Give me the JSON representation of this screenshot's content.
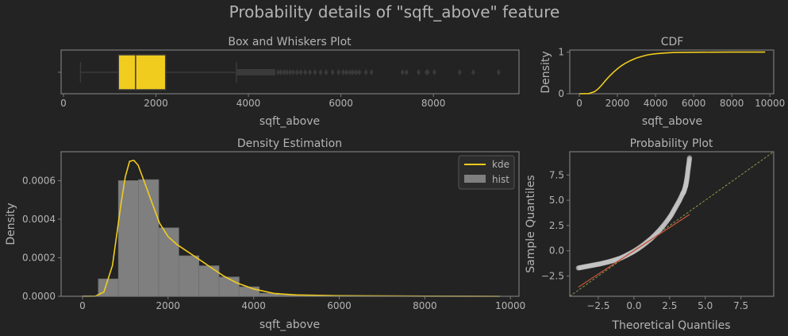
{
  "figure": {
    "suptitle": "Probability details of \"sqft_above\" feature",
    "colors": {
      "background": "#232323",
      "text": "#b4b4b4",
      "frame": "#7a7a7a",
      "accent": "#f0cc1e",
      "hist": "#7f7f7f",
      "fit_line": "#c0533a",
      "ref_line": "#8a9a4a",
      "points": "#c4c4c4"
    }
  },
  "chart_data": [
    {
      "id": "box",
      "type": "box",
      "title": "Box and Whiskers Plot",
      "xlabel": "sqft_above",
      "ylabel": "",
      "xlim": [
        -50,
        9850
      ],
      "xticks": [
        0,
        2000,
        4000,
        6000,
        8000
      ],
      "xticklabels": [
        "0",
        "2000",
        "4000",
        "6000",
        "8000"
      ],
      "stats": {
        "whislo": 370,
        "q1": 1190,
        "median": 1560,
        "q3": 2210,
        "whishi": 3740
      },
      "outlier_band": [
        3740,
        4580
      ],
      "outliers": [
        4640,
        4700,
        4770,
        4830,
        4900,
        4970,
        5050,
        5130,
        5230,
        5330,
        5440,
        5560,
        5680,
        5820,
        5950,
        6050,
        6120,
        6200,
        6260,
        6330,
        6400,
        6540,
        6660,
        7330,
        7420,
        7680,
        7850,
        7880,
        8020,
        8570,
        8860,
        9410
      ]
    },
    {
      "id": "cdf",
      "type": "line",
      "title": "CDF",
      "xlabel": "sqft_above",
      "ylabel": "Density",
      "xlim": [
        -500,
        10200
      ],
      "ylim": [
        0,
        1.05
      ],
      "xticks": [
        0,
        2000,
        4000,
        6000,
        8000,
        10000
      ],
      "xticklabels": [
        "0",
        "2000",
        "4000",
        "6000",
        "8000",
        "10000"
      ],
      "yticks": [
        0,
        1
      ],
      "yticklabels": [
        "0",
        "1"
      ],
      "series": [
        {
          "x": [
            0,
            500,
            800,
            1000,
            1200,
            1400,
            1600,
            1800,
            2000,
            2200,
            2400,
            2700,
            3000,
            3300,
            3600,
            4000,
            4500,
            5000,
            6000,
            7000,
            8000,
            9000,
            9750
          ],
          "y": [
            0,
            0.004,
            0.05,
            0.12,
            0.22,
            0.33,
            0.43,
            0.52,
            0.6,
            0.67,
            0.73,
            0.8,
            0.86,
            0.9,
            0.935,
            0.96,
            0.98,
            0.99,
            0.997,
            0.999,
            1.0,
            1.0,
            1.0
          ]
        }
      ]
    },
    {
      "id": "density",
      "type": "bar",
      "title": "Density Estimation",
      "xlabel": "sqft_above",
      "ylabel": "Density",
      "xlim": [
        -500,
        10200
      ],
      "ylim": [
        0,
        0.00075
      ],
      "xticks": [
        0,
        2000,
        4000,
        6000,
        8000,
        10000
      ],
      "xticklabels": [
        "0",
        "2000",
        "4000",
        "6000",
        "8000",
        "10000"
      ],
      "yticks": [
        0,
        0.0002,
        0.0004,
        0.0006
      ],
      "yticklabels": [
        "0.0000",
        "0.0002",
        "0.0004",
        "0.0006"
      ],
      "legend": {
        "position": "top-right",
        "entries": [
          "kde",
          "hist"
        ]
      },
      "hist": {
        "edges": [
          0,
          370,
          840,
          1310,
          1780,
          2250,
          2720,
          3190,
          3660,
          4130,
          4600,
          5070,
          5540,
          6010,
          6480,
          6950,
          7420,
          7890,
          8360,
          8830,
          9300,
          9770
        ],
        "values": [
          3e-06,
          9e-05,
          0.0006,
          0.000605,
          0.000355,
          0.00021,
          0.000158,
          0.0001,
          4.9e-05,
          1.6e-05,
          8e-06,
          5e-06,
          4e-06,
          3e-06,
          2e-06,
          1e-06,
          1e-06,
          1e-06,
          1e-06,
          1e-06,
          5e-07
        ]
      },
      "kde": {
        "x": [
          0,
          300,
          500,
          700,
          900,
          1000,
          1100,
          1200,
          1300,
          1400,
          1500,
          1600,
          1700,
          1800,
          2000,
          2200,
          2400,
          2600,
          2800,
          3000,
          3300,
          3600,
          4000,
          4500,
          5000,
          6000,
          7000,
          8000,
          9000,
          9750
        ],
        "y": [
          0,
          1e-06,
          2.2e-05,
          0.00016,
          0.00048,
          0.00062,
          0.0007,
          0.000705,
          0.00068,
          0.00062,
          0.00056,
          0.0005,
          0.00044,
          0.00038,
          0.00031,
          0.00027,
          0.00024,
          0.00021,
          0.00018,
          0.00015,
          0.000105,
          7e-05,
          3.8e-05,
          1.4e-05,
          7e-06,
          3e-06,
          1.5e-06,
          1e-06,
          5e-07,
          2e-07
        ]
      }
    },
    {
      "id": "probplot",
      "type": "scatter",
      "title": "Probability Plot",
      "xlabel": "Theoretical Quantiles",
      "ylabel": "Sample Quantiles",
      "xlim": [
        -4.5,
        9.8
      ],
      "ylim": [
        -4.5,
        9.8
      ],
      "xticks": [
        -2.5,
        0,
        2.5,
        5,
        7.5
      ],
      "xticklabels": [
        "−2.5",
        "0.0",
        "2.5",
        "5.0",
        "7.5"
      ],
      "yticks": [
        -2.5,
        0,
        2.5,
        5,
        7.5
      ],
      "yticklabels": [
        "−2.5",
        "0.0",
        "2.5",
        "5.0",
        "7.5"
      ],
      "points": {
        "x": [
          -3.9,
          -3.6,
          -3.3,
          -3.0,
          -2.7,
          -2.4,
          -2.1,
          -1.8,
          -1.5,
          -1.2,
          -0.9,
          -0.6,
          -0.3,
          0.0,
          0.3,
          0.6,
          0.9,
          1.2,
          1.5,
          1.8,
          2.1,
          2.4,
          2.6,
          2.8,
          3.0,
          3.2,
          3.4,
          3.5,
          3.6,
          3.65,
          3.7,
          3.75,
          3.8,
          3.85,
          3.9
        ],
        "y": [
          -1.7,
          -1.62,
          -1.54,
          -1.46,
          -1.38,
          -1.3,
          -1.2,
          -1.1,
          -0.98,
          -0.85,
          -0.7,
          -0.5,
          -0.28,
          -0.05,
          0.22,
          0.52,
          0.85,
          1.2,
          1.6,
          2.05,
          2.55,
          3.1,
          3.5,
          4.0,
          4.5,
          5.0,
          5.6,
          5.85,
          6.3,
          6.6,
          7.0,
          7.5,
          8.1,
          8.6,
          9.2
        ]
      },
      "fit_line": {
        "x": [
          -3.9,
          3.9
        ],
        "y": [
          -3.6,
          3.6
        ]
      },
      "ref_line": {
        "x": [
          -4.5,
          9.8
        ],
        "y": [
          -4.5,
          9.8
        ]
      }
    }
  ]
}
